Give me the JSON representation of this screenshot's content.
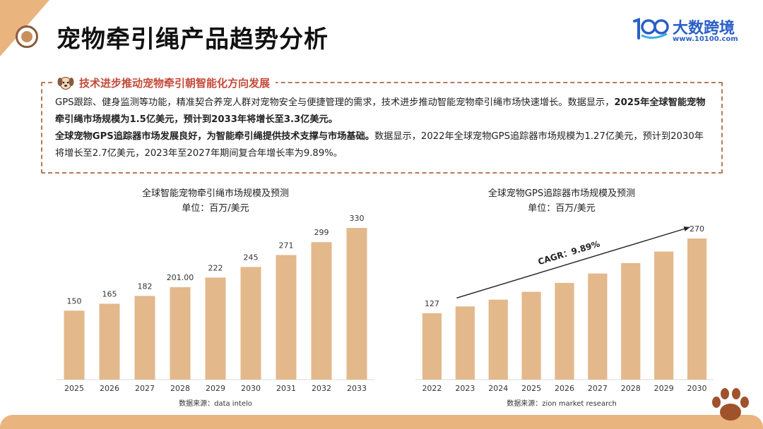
{
  "header": {
    "title": "宠物牵引绳产品趋势分析",
    "logo_name": "大数跨境",
    "logo_url": "www.10100.com"
  },
  "info": {
    "title": "技术进步推动宠物牵引朝智能化方向发展",
    "p1": "GPS跟踪、健身监测等功能，精准契合养宠人群对宠物安全与便捷管理的需求，技术进步推动智能宠物牵引绳市场快速增长。数据显示，",
    "p1_bold": "2025年全球智能宠物牵引绳市场规模为1.5亿美元，预计到2033年将增长至3.3亿美元。",
    "p2_bold": "全球宠物GPS追踪器市场发展良好，为智能牵引绳提供技术支撑与市场基础。",
    "p2": "数据显示，2022年全球宠物GPS追踪器市场规模为1.27亿美元，预计到2030年将增长至2.7亿美元，2023年至2027年期间复合年增长率为9.89%。"
  },
  "colors": {
    "bar": "#e3b88b",
    "accent": "#c34a3a",
    "brand": "#2a5ec8",
    "border": "#b5795a"
  },
  "chart_data": [
    {
      "type": "bar",
      "title": "全球智能宠物牵引绳市场规模及预测",
      "subtitle": "单位：百万/美元",
      "categories": [
        "2025",
        "2026",
        "2027",
        "2028",
        "2029",
        "2030",
        "2031",
        "2032",
        "2033"
      ],
      "values": [
        150,
        165,
        182,
        201,
        222,
        245,
        271,
        299,
        330
      ],
      "value_labels": [
        "150",
        "165",
        "182",
        "201.00",
        "222",
        "245",
        "271",
        "299",
        "330"
      ],
      "ylim": [
        0,
        360
      ],
      "source": "数据来源：data intelo"
    },
    {
      "type": "bar",
      "title": "全球宠物GPS追踪器市场规模及预测",
      "subtitle": "单位：百万/美元",
      "categories": [
        "2022",
        "2023",
        "2024",
        "2025",
        "2026",
        "2027",
        "2028",
        "2029",
        "2030"
      ],
      "values": [
        127,
        140,
        153,
        168,
        185,
        203,
        223,
        245,
        270
      ],
      "value_labels": [
        "127",
        "",
        "",
        "",
        "",
        "",
        "",
        "",
        "270"
      ],
      "ylim": [
        0,
        295
      ],
      "annotation": "CAGR：9.89%",
      "source": "数据来源：zion market research"
    }
  ]
}
